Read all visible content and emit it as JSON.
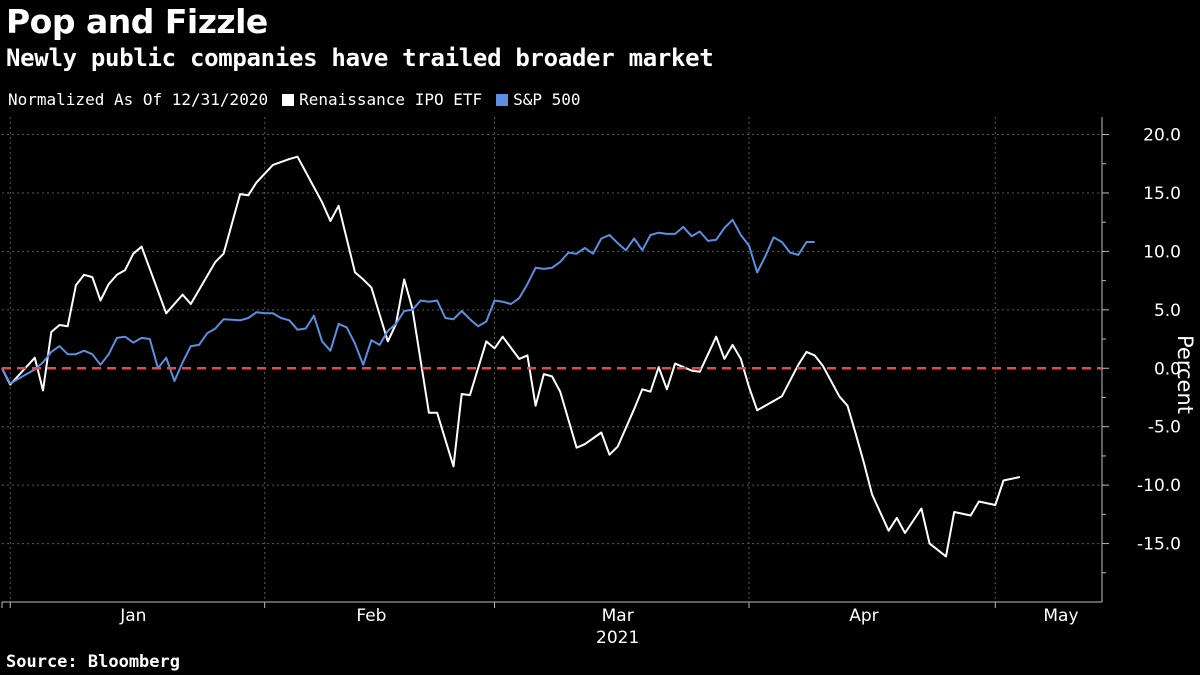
{
  "header": {
    "title": "Pop and Fizzle",
    "subtitle": "Newly public companies have trailed broader market"
  },
  "legend": {
    "note": "Normalized As Of 12/31/2020",
    "items": [
      {
        "label": "Renaissance IPO ETF",
        "color": "#ffffff"
      },
      {
        "label": "S&P 500",
        "color": "#5b8fe0"
      }
    ]
  },
  "footer": {
    "source": "Source: Bloomberg"
  },
  "chart_data": {
    "type": "line",
    "ylabel": "Percent",
    "ylim": [
      -20,
      21.5
    ],
    "yticks": [
      20,
      15,
      10,
      5,
      0,
      -5,
      -10,
      -15
    ],
    "ytick_labels": [
      "20.0",
      "15.0",
      "10.0",
      "5.0",
      "0.0",
      "-5.0",
      "-10.0",
      "-15.0"
    ],
    "x_range": [
      "2020-12-31",
      "2021-05-14"
    ],
    "month_labels": [
      {
        "label": "Jan",
        "date": "2021-01-16"
      },
      {
        "label": "Feb",
        "date": "2021-02-14"
      },
      {
        "label": "Mar",
        "date": "2021-03-16"
      },
      {
        "label": "Apr",
        "date": "2021-04-15"
      },
      {
        "label": "May",
        "date": "2021-05-09"
      }
    ],
    "month_boundaries": [
      "2021-01-01",
      "2021-02-01",
      "2021-03-01",
      "2021-04-01",
      "2021-05-01"
    ],
    "year_label": "2021",
    "grid": true,
    "reference_line": {
      "y": 0,
      "color": "#e8464b",
      "style": "dashed"
    },
    "series": [
      {
        "name": "Renaissance IPO ETF",
        "color": "#ffffff",
        "points": [
          [
            "2020-12-31",
            0.0
          ],
          [
            "2021-01-01",
            -1.4
          ],
          [
            "2021-01-04",
            0.9
          ],
          [
            "2021-01-05",
            -1.9
          ],
          [
            "2021-01-06",
            3.1
          ],
          [
            "2021-01-07",
            3.7
          ],
          [
            "2021-01-08",
            3.6
          ],
          [
            "2021-01-09",
            7.1
          ],
          [
            "2021-01-10",
            8.0
          ],
          [
            "2021-01-11",
            7.8
          ],
          [
            "2021-01-12",
            5.8
          ],
          [
            "2021-01-13",
            7.2
          ],
          [
            "2021-01-14",
            8.0
          ],
          [
            "2021-01-15",
            8.4
          ],
          [
            "2021-01-16",
            9.8
          ],
          [
            "2021-01-17",
            10.4
          ],
          [
            "2021-01-20",
            4.7
          ],
          [
            "2021-01-22",
            6.3
          ],
          [
            "2021-01-23",
            5.5
          ],
          [
            "2021-01-26",
            9.1
          ],
          [
            "2021-01-27",
            9.8
          ],
          [
            "2021-01-29",
            14.9
          ],
          [
            "2021-01-30",
            14.8
          ],
          [
            "2021-01-31",
            15.9
          ],
          [
            "2021-02-02",
            17.4
          ],
          [
            "2021-02-04",
            17.9
          ],
          [
            "2021-02-05",
            18.1
          ],
          [
            "2021-02-06",
            16.8
          ],
          [
            "2021-02-08",
            14.2
          ],
          [
            "2021-02-09",
            12.6
          ],
          [
            "2021-02-10",
            13.9
          ],
          [
            "2021-02-12",
            8.2
          ],
          [
            "2021-02-13",
            7.6
          ],
          [
            "2021-02-14",
            6.9
          ],
          [
            "2021-02-16",
            2.3
          ],
          [
            "2021-02-17",
            3.8
          ],
          [
            "2021-02-18",
            7.6
          ],
          [
            "2021-02-19",
            5.1
          ],
          [
            "2021-02-21",
            -3.8
          ],
          [
            "2021-02-22",
            -3.8
          ],
          [
            "2021-02-24",
            -8.4
          ],
          [
            "2021-02-25",
            -2.2
          ],
          [
            "2021-02-26",
            -2.3
          ],
          [
            "2021-02-28",
            2.3
          ],
          [
            "2021-03-01",
            1.7
          ],
          [
            "2021-03-02",
            2.7
          ],
          [
            "2021-03-04",
            0.8
          ],
          [
            "2021-03-05",
            1.1
          ],
          [
            "2021-03-06",
            -3.2
          ],
          [
            "2021-03-07",
            -0.5
          ],
          [
            "2021-03-08",
            -0.7
          ],
          [
            "2021-03-09",
            -2.0
          ],
          [
            "2021-03-11",
            -6.8
          ],
          [
            "2021-03-12",
            -6.5
          ],
          [
            "2021-03-14",
            -5.5
          ],
          [
            "2021-03-15",
            -7.4
          ],
          [
            "2021-03-16",
            -6.7
          ],
          [
            "2021-03-18",
            -3.5
          ],
          [
            "2021-03-19",
            -1.8
          ],
          [
            "2021-03-20",
            -2.0
          ],
          [
            "2021-03-21",
            0.1
          ],
          [
            "2021-03-22",
            -1.8
          ],
          [
            "2021-03-23",
            0.4
          ],
          [
            "2021-03-25",
            -0.2
          ],
          [
            "2021-03-26",
            -0.3
          ],
          [
            "2021-03-28",
            2.7
          ],
          [
            "2021-03-29",
            0.8
          ],
          [
            "2021-03-30",
            2.0
          ],
          [
            "2021-03-31",
            0.8
          ],
          [
            "2021-04-01",
            -1.6
          ],
          [
            "2021-04-02",
            -3.6
          ],
          [
            "2021-04-04",
            -2.8
          ],
          [
            "2021-04-05",
            -2.4
          ],
          [
            "2021-04-07",
            0.3
          ],
          [
            "2021-04-08",
            1.4
          ],
          [
            "2021-04-09",
            1.1
          ],
          [
            "2021-04-10",
            0.2
          ],
          [
            "2021-04-12",
            -2.4
          ],
          [
            "2021-04-13",
            -3.2
          ],
          [
            "2021-04-14",
            -5.6
          ],
          [
            "2021-04-15",
            -8.1
          ],
          [
            "2021-04-16",
            -10.8
          ],
          [
            "2021-04-18",
            -13.9
          ],
          [
            "2021-04-19",
            -12.8
          ],
          [
            "2021-04-20",
            -14.1
          ],
          [
            "2021-04-22",
            -12.0
          ],
          [
            "2021-04-23",
            -15.0
          ],
          [
            "2021-04-25",
            -16.1
          ],
          [
            "2021-04-26",
            -12.3
          ],
          [
            "2021-04-28",
            -12.6
          ],
          [
            "2021-04-29",
            -11.4
          ],
          [
            "2021-05-01",
            -11.7
          ],
          [
            "2021-05-02",
            -9.6
          ],
          [
            "2021-05-04",
            -9.3
          ]
        ]
      },
      {
        "name": "S&P 500",
        "color": "#5b8fe0",
        "points": [
          [
            "2020-12-31",
            0.0
          ],
          [
            "2021-01-01",
            -1.3
          ],
          [
            "2021-01-04",
            -0.1
          ],
          [
            "2021-01-05",
            0.5
          ],
          [
            "2021-01-06",
            1.4
          ],
          [
            "2021-01-07",
            1.9
          ],
          [
            "2021-01-08",
            1.2
          ],
          [
            "2021-01-09",
            1.2
          ],
          [
            "2021-01-10",
            1.5
          ],
          [
            "2021-01-11",
            1.2
          ],
          [
            "2021-01-12",
            0.3
          ],
          [
            "2021-01-13",
            1.2
          ],
          [
            "2021-01-14",
            2.6
          ],
          [
            "2021-01-15",
            2.7
          ],
          [
            "2021-01-16",
            2.2
          ],
          [
            "2021-01-17",
            2.6
          ],
          [
            "2021-01-18",
            2.5
          ],
          [
            "2021-01-19",
            0.0
          ],
          [
            "2021-01-20",
            0.9
          ],
          [
            "2021-01-21",
            -1.1
          ],
          [
            "2021-01-22",
            0.5
          ],
          [
            "2021-01-23",
            1.9
          ],
          [
            "2021-01-24",
            2.0
          ],
          [
            "2021-01-25",
            3.0
          ],
          [
            "2021-01-26",
            3.4
          ],
          [
            "2021-01-27",
            4.2
          ],
          [
            "2021-01-29",
            4.1
          ],
          [
            "2021-01-30",
            4.3
          ],
          [
            "2021-01-31",
            4.8
          ],
          [
            "2021-02-01",
            4.7
          ],
          [
            "2021-02-02",
            4.7
          ],
          [
            "2021-02-03",
            4.3
          ],
          [
            "2021-02-04",
            4.1
          ],
          [
            "2021-02-05",
            3.3
          ],
          [
            "2021-02-06",
            3.4
          ],
          [
            "2021-02-07",
            4.5
          ],
          [
            "2021-02-08",
            2.3
          ],
          [
            "2021-02-09",
            1.5
          ],
          [
            "2021-02-10",
            3.8
          ],
          [
            "2021-02-11",
            3.5
          ],
          [
            "2021-02-12",
            2.1
          ],
          [
            "2021-02-13",
            0.3
          ],
          [
            "2021-02-14",
            2.4
          ],
          [
            "2021-02-15",
            2.0
          ],
          [
            "2021-02-16",
            3.2
          ],
          [
            "2021-02-17",
            3.8
          ],
          [
            "2021-02-18",
            4.9
          ],
          [
            "2021-02-19",
            5.0
          ],
          [
            "2021-02-20",
            5.8
          ],
          [
            "2021-02-21",
            5.7
          ],
          [
            "2021-02-22",
            5.8
          ],
          [
            "2021-02-23",
            4.3
          ],
          [
            "2021-02-24",
            4.2
          ],
          [
            "2021-02-25",
            4.9
          ],
          [
            "2021-02-26",
            4.2
          ],
          [
            "2021-02-27",
            3.6
          ],
          [
            "2021-02-28",
            4.0
          ],
          [
            "2021-03-01",
            5.8
          ],
          [
            "2021-03-02",
            5.7
          ],
          [
            "2021-03-03",
            5.5
          ],
          [
            "2021-03-04",
            6.0
          ],
          [
            "2021-03-05",
            7.2
          ],
          [
            "2021-03-06",
            8.6
          ],
          [
            "2021-03-07",
            8.5
          ],
          [
            "2021-03-08",
            8.6
          ],
          [
            "2021-03-09",
            9.1
          ],
          [
            "2021-03-10",
            9.9
          ],
          [
            "2021-03-11",
            9.8
          ],
          [
            "2021-03-12",
            10.3
          ],
          [
            "2021-03-13",
            9.8
          ],
          [
            "2021-03-14",
            11.1
          ],
          [
            "2021-03-15",
            11.4
          ],
          [
            "2021-03-16",
            10.7
          ],
          [
            "2021-03-17",
            10.1
          ],
          [
            "2021-03-18",
            11.1
          ],
          [
            "2021-03-19",
            10.1
          ],
          [
            "2021-03-20",
            11.4
          ],
          [
            "2021-03-21",
            11.6
          ],
          [
            "2021-03-22",
            11.5
          ],
          [
            "2021-03-23",
            11.5
          ],
          [
            "2021-03-24",
            12.1
          ],
          [
            "2021-03-25",
            11.3
          ],
          [
            "2021-03-26",
            11.7
          ],
          [
            "2021-03-27",
            10.9
          ],
          [
            "2021-03-28",
            11.0
          ],
          [
            "2021-03-29",
            12.0
          ],
          [
            "2021-03-30",
            12.7
          ],
          [
            "2021-03-31",
            11.4
          ],
          [
            "2021-04-01",
            10.5
          ],
          [
            "2021-04-02",
            8.2
          ],
          [
            "2021-04-03",
            9.6
          ],
          [
            "2021-04-04",
            11.2
          ],
          [
            "2021-04-05",
            10.8
          ],
          [
            "2021-04-06",
            9.9
          ],
          [
            "2021-04-07",
            9.7
          ],
          [
            "2021-04-08",
            10.8
          ],
          [
            "2021-04-09",
            10.8
          ]
        ]
      }
    ]
  }
}
